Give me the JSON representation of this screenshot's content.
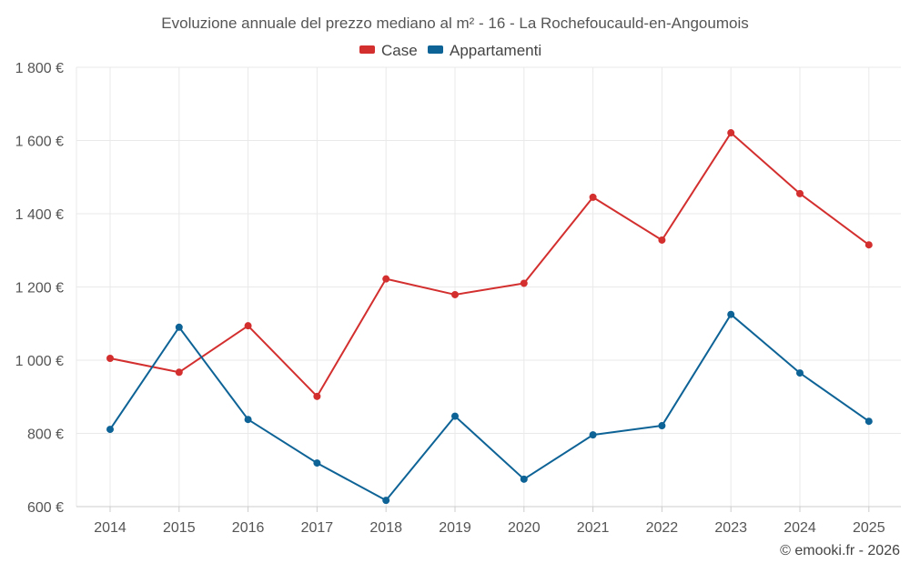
{
  "chart_data": {
    "type": "line",
    "title": "Evoluzione annuale del prezzo mediano al m² - 16 - La Rochefoucauld-en-Angoumois",
    "categories": [
      "2014",
      "2015",
      "2016",
      "2017",
      "2018",
      "2019",
      "2020",
      "2021",
      "2022",
      "2023",
      "2024",
      "2025"
    ],
    "series": [
      {
        "name": "Case",
        "color": "#d32f2f",
        "values": [
          1005,
          967,
          1094,
          901,
          1222,
          1179,
          1210,
          1445,
          1328,
          1621,
          1455,
          1315
        ]
      },
      {
        "name": "Appartamenti",
        "color": "#0e6396",
        "values": [
          811,
          1090,
          838,
          719,
          617,
          847,
          675,
          796,
          821,
          1125,
          965,
          833
        ]
      }
    ],
    "ylim": [
      600,
      1800
    ],
    "yticks": [
      600,
      800,
      1000,
      1200,
      1400,
      1600,
      1800
    ],
    "ytick_labels": [
      "600 €",
      "800 €",
      "1 000 €",
      "1 200 €",
      "1 400 €",
      "1 600 €",
      "1 800 €"
    ],
    "xlabel": "",
    "ylabel": "",
    "legend_position": "top-center",
    "grid": true
  },
  "credit": "© emooki.fr - 2026",
  "colors": {
    "grid": "#e9e9e9",
    "text": "#555555"
  }
}
